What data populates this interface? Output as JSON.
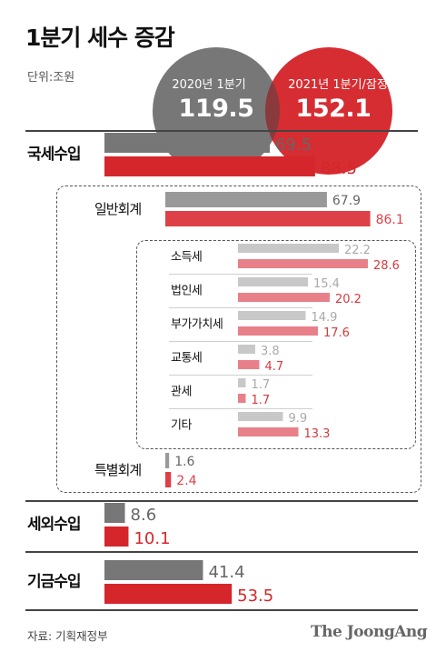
{
  "title": "1분기 세수 증감",
  "unit": "단위:조원",
  "totals": {
    "prev_label": "2020년 1분기",
    "prev_value": "119.5",
    "curr_label": "2021년 1분기/잠정",
    "curr_value": "152.1"
  },
  "colors": {
    "prev": "#777777",
    "curr": "#d5262b",
    "prev_sub": "#999999",
    "curr_sub": "#de4048",
    "prev_item": "#c8c8c8",
    "curr_item": "#e8808a",
    "curr_item_text": "#d53a3e",
    "prev_item_text": "#aaaaaa"
  },
  "source": "자료: 기획재정부",
  "brand": "The JoongAng",
  "chart_data": {
    "type": "bar",
    "title": "1분기 세수 증감",
    "series_names": [
      "2020년 1분기",
      "2021년 1분기/잠정"
    ],
    "categories": [
      {
        "label": "국세수입",
        "level": "main",
        "values": [
          69.5,
          88.5
        ],
        "labels": [
          "69.5",
          "88.5"
        ]
      },
      {
        "label": "일반회계",
        "level": "sub",
        "values": [
          67.9,
          86.1
        ],
        "labels": [
          "67.9",
          "86.1"
        ]
      },
      {
        "label": "소득세",
        "level": "item",
        "values": [
          22.2,
          28.6
        ],
        "labels": [
          "22.2",
          "28.6"
        ]
      },
      {
        "label": "법인세",
        "level": "item",
        "values": [
          15.4,
          20.2
        ],
        "labels": [
          "15.4",
          "20.2"
        ]
      },
      {
        "label": "부가가치세",
        "level": "item",
        "values": [
          14.9,
          17.6
        ],
        "labels": [
          "14.9",
          "17.6"
        ]
      },
      {
        "label": "교통세",
        "level": "item",
        "values": [
          3.8,
          4.7
        ],
        "labels": [
          "3.8",
          "4.7"
        ]
      },
      {
        "label": "관세",
        "level": "item",
        "values": [
          1.7,
          1.7
        ],
        "labels": [
          "1.7",
          "1.7"
        ]
      },
      {
        "label": "기타",
        "level": "item",
        "values": [
          9.9,
          13.3
        ],
        "labels": [
          "9.9",
          "13.3"
        ]
      },
      {
        "label": "특별회계",
        "level": "sub",
        "values": [
          1.6,
          2.4
        ],
        "labels": [
          "1.6",
          "2.4"
        ]
      },
      {
        "label": "세외수입",
        "level": "main",
        "values": [
          8.6,
          10.1
        ],
        "labels": [
          "8.6",
          "10.1"
        ]
      },
      {
        "label": "기금수입",
        "level": "main",
        "values": [
          41.4,
          53.5
        ],
        "labels": [
          "41.4",
          "53.5"
        ]
      }
    ]
  }
}
